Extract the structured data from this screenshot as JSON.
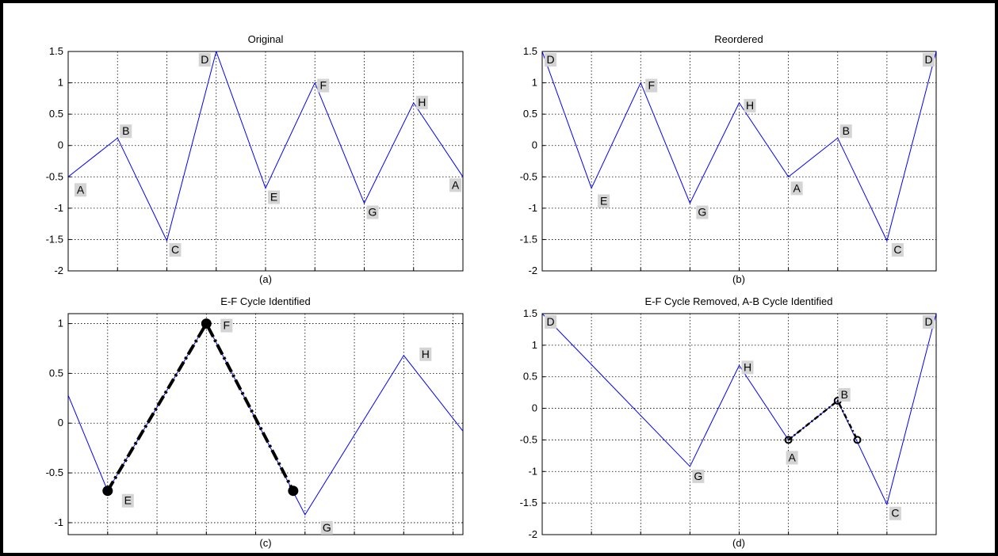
{
  "chart_data": [
    {
      "type": "line",
      "title": "Original",
      "caption": "(a)",
      "xlim": [
        0,
        8
      ],
      "ylim": [
        -2,
        1.5
      ],
      "xgrid": [
        0,
        1,
        2,
        3,
        4,
        5,
        6,
        7,
        8
      ],
      "yticks": [
        -2,
        -1.5,
        -1,
        -0.5,
        0,
        0.5,
        1,
        1.5
      ],
      "ytick_labels": [
        "-2",
        "-1.5",
        "-1",
        "-0.5",
        "0",
        "0.5",
        "1",
        "1.5"
      ],
      "grid": true,
      "color": "#0000ff",
      "series": [
        {
          "x": [
            0,
            1,
            2,
            3,
            4,
            5,
            6,
            7,
            8
          ],
          "y": [
            -0.5,
            0.12,
            -1.52,
            1.5,
            -0.68,
            1.0,
            -0.92,
            0.68,
            -0.5
          ]
        }
      ],
      "point_labels": [
        {
          "text": "A",
          "x": 0,
          "y": -0.5
        },
        {
          "text": "B",
          "x": 1,
          "y": 0.12
        },
        {
          "text": "C",
          "x": 2,
          "y": -1.52
        },
        {
          "text": "D",
          "x": 3,
          "y": 1.5
        },
        {
          "text": "E",
          "x": 4,
          "y": -0.68
        },
        {
          "text": "F",
          "x": 5,
          "y": 1.0
        },
        {
          "text": "G",
          "x": 6,
          "y": -0.92
        },
        {
          "text": "H",
          "x": 7,
          "y": 0.68
        },
        {
          "text": "A",
          "x": 8,
          "y": -0.5
        }
      ]
    },
    {
      "type": "line",
      "title": "Reordered",
      "caption": "(b)",
      "xlim": [
        0,
        8
      ],
      "ylim": [
        -2,
        1.5
      ],
      "xgrid": [
        0,
        1,
        2,
        3,
        4,
        5,
        6,
        7,
        8
      ],
      "yticks": [
        -2,
        -1.5,
        -1,
        -0.5,
        0,
        0.5,
        1,
        1.5
      ],
      "ytick_labels": [
        "-2",
        "-1.5",
        "-1",
        "-0.5",
        "0",
        "0.5",
        "1",
        "1.5"
      ],
      "grid": true,
      "color": "#0000ff",
      "series": [
        {
          "x": [
            0,
            1,
            2,
            3,
            4,
            5,
            6,
            7,
            8
          ],
          "y": [
            1.5,
            -0.68,
            1.0,
            -0.92,
            0.68,
            -0.5,
            0.12,
            -1.52,
            1.5
          ]
        }
      ],
      "point_labels": [
        {
          "text": "D",
          "x": 0,
          "y": 1.5
        },
        {
          "text": "E",
          "x": 1,
          "y": -0.68
        },
        {
          "text": "F",
          "x": 2,
          "y": 1.0
        },
        {
          "text": "G",
          "x": 3,
          "y": -0.92
        },
        {
          "text": "H",
          "x": 4,
          "y": 0.68
        },
        {
          "text": "A",
          "x": 5,
          "y": -0.5
        },
        {
          "text": "B",
          "x": 6,
          "y": 0.12
        },
        {
          "text": "C",
          "x": 7,
          "y": -1.52
        },
        {
          "text": "D",
          "x": 8,
          "y": 1.5
        }
      ]
    },
    {
      "type": "line",
      "title": "E-F Cycle Identified",
      "caption": "(c)",
      "xlim": [
        0.6,
        4.6
      ],
      "ylim": [
        -1.12,
        1.1
      ],
      "xgrid": [
        1,
        1.5,
        2,
        2.5,
        3,
        3.5,
        4,
        4.5
      ],
      "yticks": [
        -1,
        -0.5,
        0,
        0.5,
        1
      ],
      "ytick_labels": [
        "-1",
        "-0.5",
        "0",
        "0.5",
        "1"
      ],
      "grid": true,
      "color": "#0000ff",
      "series": [
        {
          "x": [
            0.6,
            1,
            2,
            3,
            4,
            4.6
          ],
          "y": [
            0.28,
            -0.68,
            1.0,
            -0.92,
            0.68,
            -0.08
          ]
        }
      ],
      "cycle": {
        "x": [
          1,
          2,
          2.88
        ],
        "y": [
          -0.68,
          1.0,
          -0.68
        ],
        "marker_size": "large"
      },
      "point_labels": [
        {
          "text": "E",
          "x": 1,
          "y": -0.68
        },
        {
          "text": "F",
          "x": 2,
          "y": 1.0
        },
        {
          "text": "G",
          "x": 3,
          "y": -0.92
        },
        {
          "text": "H",
          "x": 4,
          "y": 0.68
        }
      ]
    },
    {
      "type": "line",
      "title": "E-F Cycle Removed, A-B Cycle Identified",
      "caption": "(d)",
      "xlim": [
        0,
        8
      ],
      "ylim": [
        -2,
        1.5
      ],
      "xgrid": [
        0,
        1,
        2,
        3,
        4,
        5,
        6,
        7,
        8
      ],
      "yticks": [
        -2,
        -1.5,
        -1,
        -0.5,
        0,
        0.5,
        1,
        1.5
      ],
      "ytick_labels": [
        "-2",
        "-1.5",
        "-1",
        "-0.5",
        "0",
        "0.5",
        "1",
        "1.5"
      ],
      "grid": true,
      "color": "#0000ff",
      "series": [
        {
          "x": [
            0,
            3,
            4,
            5,
            6,
            7,
            8
          ],
          "y": [
            1.5,
            -0.92,
            0.68,
            -0.5,
            0.12,
            -1.52,
            1.5
          ]
        }
      ],
      "cycle": {
        "x": [
          5,
          6,
          6.4
        ],
        "y": [
          -0.5,
          0.12,
          -0.5
        ],
        "marker_size": "small"
      },
      "point_labels": [
        {
          "text": "D",
          "x": 0,
          "y": 1.5
        },
        {
          "text": "G",
          "x": 3,
          "y": -0.92
        },
        {
          "text": "H",
          "x": 4,
          "y": 0.68
        },
        {
          "text": "A",
          "x": 5,
          "y": -0.5
        },
        {
          "text": "B",
          "x": 6,
          "y": 0.12
        },
        {
          "text": "C",
          "x": 7,
          "y": -1.52
        },
        {
          "text": "D",
          "x": 8,
          "y": 1.5
        }
      ]
    }
  ]
}
